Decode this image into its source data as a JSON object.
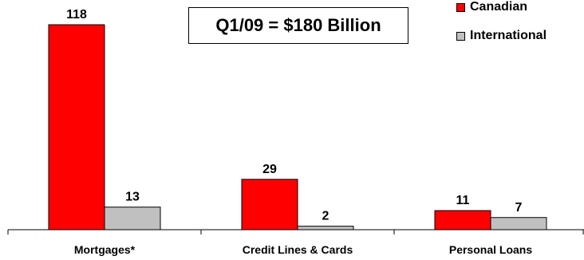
{
  "chart_data": {
    "type": "bar",
    "title": "Q1/09 = $180 Billion",
    "categories": [
      "Mortgages*",
      "Credit Lines & Cards",
      "Personal Loans"
    ],
    "series": [
      {
        "name": "Canadian",
        "values": [
          118,
          29,
          11
        ],
        "color": "#ff0000"
      },
      {
        "name": "International",
        "values": [
          13,
          2,
          7
        ],
        "color": "#c0c0c0"
      }
    ],
    "ylim": [
      0,
      118
    ],
    "grid": false,
    "legend": "top-right",
    "data_labels": true
  }
}
